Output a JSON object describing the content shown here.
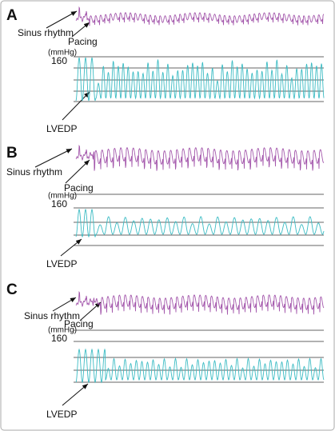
{
  "panels": [
    {
      "letter": "A",
      "sinus": "Sinus rhythm",
      "pacing": "Pacing",
      "unit": "(mmHg)",
      "tick": "160",
      "lvedp": "LVEDP"
    },
    {
      "letter": "B",
      "sinus": "Sinus rhythm",
      "pacing": "Pacing",
      "unit": "(mmHg)",
      "tick": "160",
      "lvedp": "LVEDP"
    },
    {
      "letter": "C",
      "sinus": "Sinus rhythm",
      "pacing": "Pacing",
      "unit": "(mmHg)",
      "tick": "160",
      "lvedp": "LVEDP"
    }
  ]
}
